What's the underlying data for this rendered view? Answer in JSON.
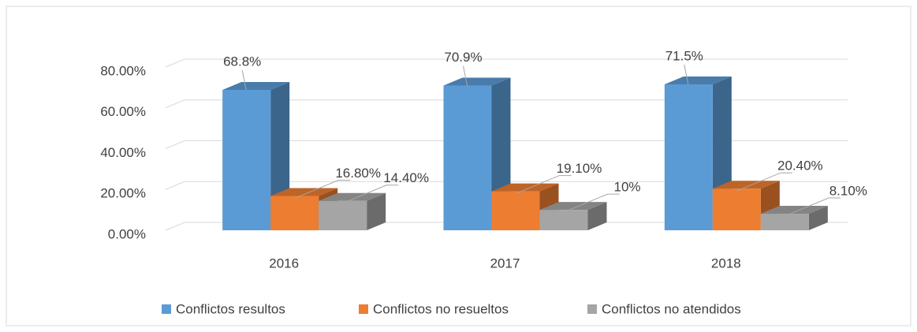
{
  "chart_data": {
    "type": "bar3d",
    "categories": [
      "2016",
      "2017",
      "2018"
    ],
    "series": [
      {
        "name": "Conflictos resultos",
        "color": "#5b9bd5",
        "values": [
          68.8,
          70.9,
          71.5
        ],
        "value_labels": [
          "68.8%",
          "70.9%",
          "71.5%"
        ]
      },
      {
        "name": "Conflictos no resueltos",
        "color": "#ed7d31",
        "values": [
          16.8,
          19.1,
          20.4
        ],
        "value_labels": [
          "16.80%",
          "19.10%",
          "20.40%"
        ]
      },
      {
        "name": "Conflictos no atendidos",
        "color": "#a5a5a5",
        "values": [
          14.4,
          10,
          8.1
        ],
        "value_labels": [
          "14.40%",
          "10%",
          "8.10%"
        ]
      }
    ],
    "ylim": [
      0,
      80
    ],
    "yticks": [
      {
        "value": 0,
        "label": "0.00%"
      },
      {
        "value": 20,
        "label": "20.00%"
      },
      {
        "value": 40,
        "label": "40.00%"
      },
      {
        "value": 60,
        "label": "60.00%"
      },
      {
        "value": 80,
        "label": "80.00%"
      }
    ],
    "grid": true,
    "legend": "bottom"
  }
}
